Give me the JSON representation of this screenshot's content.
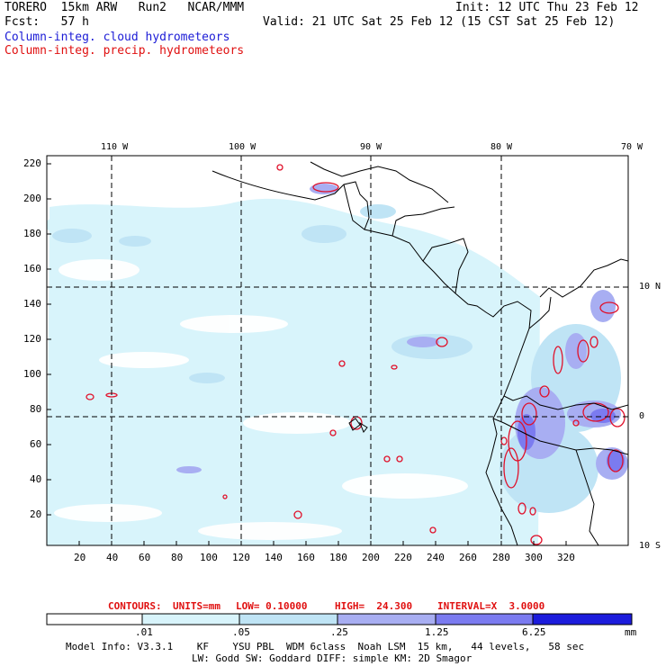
{
  "header": {
    "model_line": "TORERO  15km ARW   Run2   NCAR/MMM",
    "init_line": "Init: 12 UTC Thu 23 Feb 12",
    "fcst_line": "Fcst:   57 h",
    "valid_line": "Valid: 21 UTC Sat 25 Feb 12 (15 CST Sat 25 Feb 12)",
    "field1": "Column-integ. cloud hydrometeors",
    "field2": "Column-integ. precip. hydrometeors"
  },
  "map": {
    "top_labels": [
      "110 W",
      "100 W",
      "90 W",
      "80 W",
      "70 W"
    ],
    "right_labels": [
      "10 N",
      "0",
      "10 S"
    ],
    "x_ticks": [
      "20",
      "40",
      "60",
      "80",
      "100",
      "120",
      "140",
      "160",
      "180",
      "200",
      "220",
      "240",
      "260",
      "280",
      "300",
      "320"
    ],
    "y_ticks": [
      "220",
      "200",
      "180",
      "160",
      "140",
      "120",
      "100",
      "80",
      "60",
      "40",
      "20"
    ]
  },
  "contours": {
    "label": "CONTOURS:",
    "units": "UNITS=mm",
    "low": "LOW= 0.10000",
    "high": "HIGH=  24.300",
    "interval": "INTERVAL=X  3.0000"
  },
  "colorbar": {
    "labels": [
      ".01",
      ".05",
      ".25",
      "1.25",
      "6.25"
    ],
    "units": "mm",
    "colors": [
      "#ffffff",
      "#d8f4fb",
      "#bfe4f5",
      "#a8aef2",
      "#7b7bf0",
      "#4545e8",
      "#1c1cdc"
    ]
  },
  "footer": {
    "line1": "Model Info: V3.3.1    KF    YSU PBL  WDM 6class  Noah LSM  15 km,   44 levels,   58 sec",
    "line2": "LW: Godd SW: Goddard DIFF: simple KM: 2D Smagor"
  }
}
